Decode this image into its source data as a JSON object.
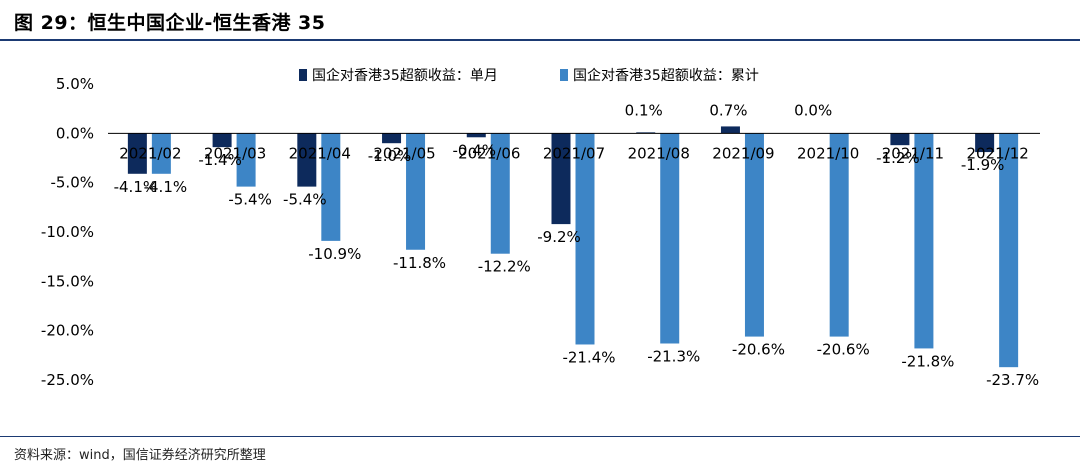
{
  "figure": {
    "title": "图 29：恒生中国企业-恒生香港 35",
    "source": "资料来源：wind，国信证券经济研究所整理"
  },
  "chart_data": {
    "type": "bar",
    "categories": [
      "2021/02",
      "2021/03",
      "2021/04",
      "2021/05",
      "2021/06",
      "2021/07",
      "2021/08",
      "2021/09",
      "2021/10",
      "2021/11",
      "2021/12"
    ],
    "series": [
      {
        "name": "国企对香港35超额收益：单月",
        "color": "#0d2a5c",
        "values": [
          -4.1,
          -1.4,
          -5.4,
          -1.0,
          -0.4,
          -9.2,
          0.1,
          0.7,
          0.0,
          -1.2,
          -1.9
        ],
        "labels": [
          "-4.1%",
          "-1.4%",
          "-5.4%",
          "-1.0%",
          "-0.4%",
          "-9.2%",
          "0.1%",
          "0.7%",
          "0.0%",
          "-1.2%",
          "-1.9%"
        ]
      },
      {
        "name": "国企对香港35超额收益：累计",
        "color": "#3d85c6",
        "values": [
          -4.1,
          -5.4,
          -10.9,
          -11.8,
          -12.2,
          -21.4,
          -21.3,
          -20.6,
          -20.6,
          -21.8,
          -23.7
        ],
        "labels": [
          "-4.1%",
          "-5.4%",
          "-10.9%",
          "-11.8%",
          "-12.2%",
          "-21.4%",
          "-21.3%",
          "-20.6%",
          "-20.6%",
          "-21.8%",
          "-23.7%"
        ]
      }
    ],
    "yticks": [
      "5.0%",
      "0.0%",
      "-5.0%",
      "-10.0%",
      "-15.0%",
      "-20.0%",
      "-25.0%"
    ],
    "ylim": [
      -25,
      5
    ],
    "xlabel": "",
    "ylabel": "",
    "legend": "top-center",
    "grid": false
  }
}
